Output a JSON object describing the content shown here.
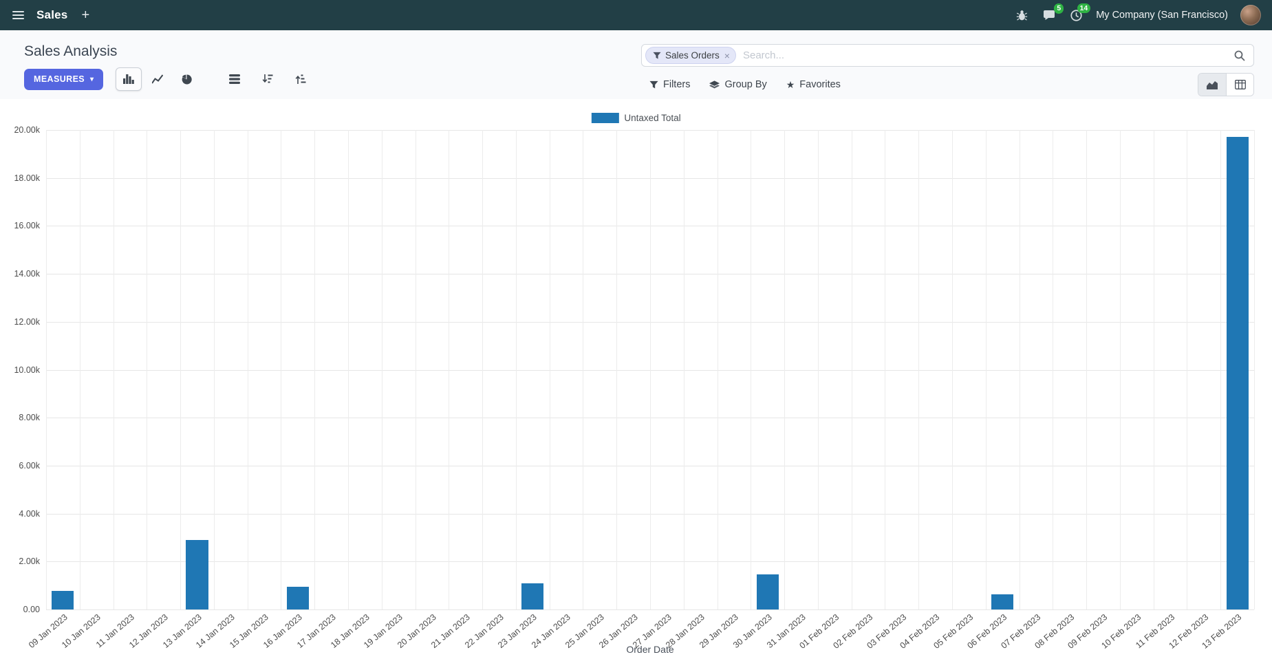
{
  "colors": {
    "navbar_bg": "#223f46",
    "primary": "#5566e0",
    "bar_blue": "#1f77b4",
    "badge_green": "#2fb344"
  },
  "icons": {
    "caret_down": "▾",
    "star": "★",
    "plus": "+",
    "close": "×"
  },
  "navbar": {
    "app_name": "Sales",
    "messages_badge": "5",
    "activities_badge": "14",
    "company": "My Company (San Francisco)"
  },
  "control_panel": {
    "title": "Sales Analysis",
    "measures_label": "MEASURES",
    "search": {
      "facet": "Sales Orders",
      "placeholder": "Search..."
    },
    "filters_label": "Filters",
    "group_by_label": "Group By",
    "favorites_label": "Favorites"
  },
  "chart_data": {
    "type": "bar",
    "title": "",
    "xlabel": "Order Date",
    "ylabel": "",
    "ylim": [
      0,
      20000
    ],
    "ytick_step": 2000,
    "ytick_labels": [
      "0.00",
      "2.00k",
      "4.00k",
      "6.00k",
      "8.00k",
      "10.00k",
      "12.00k",
      "14.00k",
      "16.00k",
      "18.00k",
      "20.00k"
    ],
    "grid": true,
    "legend_position": "top",
    "categories": [
      "09 Jan 2023",
      "10 Jan 2023",
      "11 Jan 2023",
      "12 Jan 2023",
      "13 Jan 2023",
      "14 Jan 2023",
      "15 Jan 2023",
      "16 Jan 2023",
      "17 Jan 2023",
      "18 Jan 2023",
      "19 Jan 2023",
      "20 Jan 2023",
      "21 Jan 2023",
      "22 Jan 2023",
      "23 Jan 2023",
      "24 Jan 2023",
      "25 Jan 2023",
      "26 Jan 2023",
      "27 Jan 2023",
      "28 Jan 2023",
      "29 Jan 2023",
      "30 Jan 2023",
      "31 Jan 2023",
      "01 Feb 2023",
      "02 Feb 2023",
      "03 Feb 2023",
      "04 Feb 2023",
      "05 Feb 2023",
      "06 Feb 2023",
      "07 Feb 2023",
      "08 Feb 2023",
      "09 Feb 2023",
      "10 Feb 2023",
      "11 Feb 2023",
      "12 Feb 2023",
      "13 Feb 2023"
    ],
    "series": [
      {
        "name": "Untaxed Total",
        "color": "#1f77b4",
        "values": [
          780,
          0,
          0,
          0,
          2900,
          0,
          0,
          950,
          0,
          0,
          0,
          0,
          0,
          0,
          1080,
          0,
          0,
          0,
          0,
          0,
          0,
          1450,
          0,
          0,
          0,
          0,
          0,
          0,
          620,
          0,
          0,
          0,
          0,
          0,
          0,
          19700
        ]
      }
    ]
  }
}
